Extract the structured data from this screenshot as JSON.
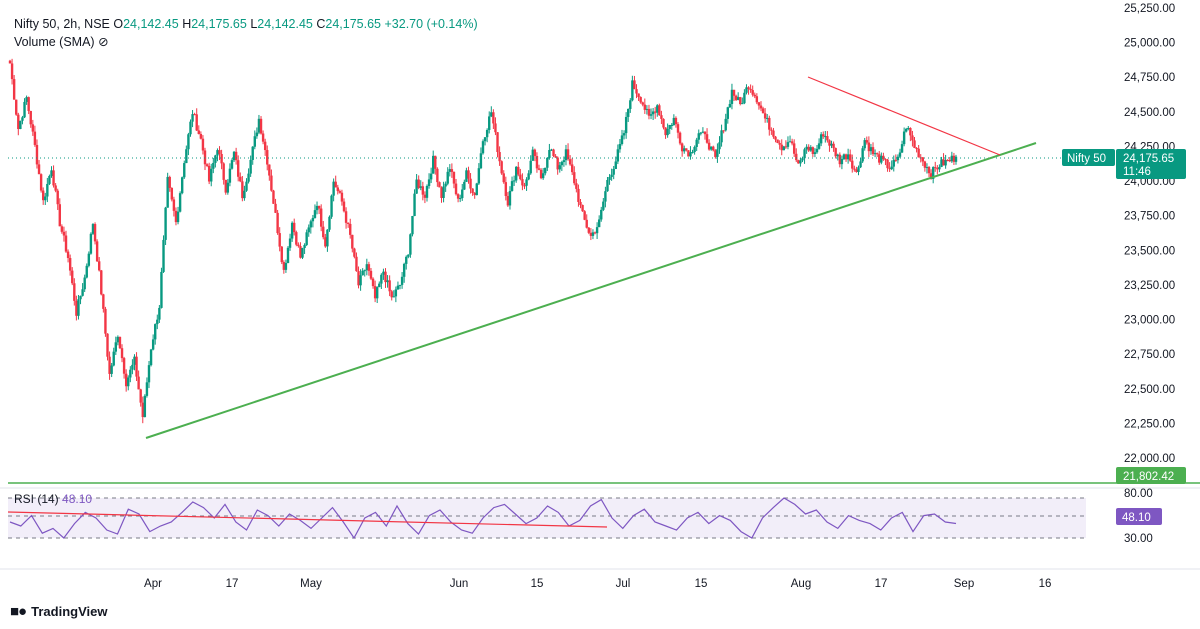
{
  "header": {
    "symbol": "Nifty 50, 2h, NSE",
    "o_label": "O",
    "o_value": "24,142.45",
    "h_label": "H",
    "h_value": "24,175.65",
    "l_label": "L",
    "l_value": "24,142.45",
    "c_label": "C",
    "c_value": "24,175.65",
    "change": "+32.70 (+0.14%)",
    "volume_label": "Volume (SMA)",
    "volume_icon": "eye-crossed-icon"
  },
  "price_axis": {
    "ticks": [
      "25,250.00",
      "25,000.00",
      "24,750.00",
      "24,500.00",
      "24,250.00",
      "24,000.00",
      "23,750.00",
      "23,500.00",
      "23,250.00",
      "23,000.00",
      "22,750.00",
      "22,500.00",
      "22,250.00",
      "22,000.00"
    ],
    "current_symbol_tag": "Nifty 50",
    "current_price": "24,175.65",
    "countdown": "11:46",
    "horizontal_line_label": "21,802.42"
  },
  "rsi": {
    "label": "RSI (14)",
    "value": "48.10",
    "upper": "80.00",
    "lower": "30.00"
  },
  "time_axis": [
    "Apr",
    "17",
    "May",
    "Jun",
    "15",
    "Jul",
    "15",
    "Aug",
    "17",
    "Sep",
    "16"
  ],
  "brand": "TradingView",
  "colors": {
    "up": "#089981",
    "down": "#f23645",
    "green_line": "#4caf50",
    "red_line": "#f23645",
    "rsi": "#7e57c2",
    "rsi_band": "#ede7f6",
    "price_tag": "#089981",
    "line_tag": "#4caf50"
  },
  "chart_data": {
    "type": "candlestick",
    "symbol": "Nifty 50",
    "interval": "2h",
    "ylim": [
      21800,
      25250
    ],
    "last_close": 24175.65,
    "horizontal_line": 21802.42,
    "close_path": [
      {
        "x": "Mar 19",
        "y": 24850
      },
      {
        "x": "Mar 20",
        "y": 24380
      },
      {
        "x": "Mar 21",
        "y": 24600
      },
      {
        "x": "Mar 22",
        "y": 24250
      },
      {
        "x": "Mar 25",
        "y": 23850
      },
      {
        "x": "Mar 26",
        "y": 24100
      },
      {
        "x": "Mar 27",
        "y": 23700
      },
      {
        "x": "Mar 28",
        "y": 23450
      },
      {
        "x": "Mar 29",
        "y": 23050
      },
      {
        "x": "Apr 1",
        "y": 23300
      },
      {
        "x": "Apr 2",
        "y": 23700
      },
      {
        "x": "Apr 3",
        "y": 23200
      },
      {
        "x": "Apr 4",
        "y": 22600
      },
      {
        "x": "Apr 7",
        "y": 22900
      },
      {
        "x": "Apr 8",
        "y": 22550
      },
      {
        "x": "Apr 9",
        "y": 22700
      },
      {
        "x": "Apr 10",
        "y": 22300
      },
      {
        "x": "Apr 11",
        "y": 22800
      },
      {
        "x": "Apr 14",
        "y": 23100
      },
      {
        "x": "Apr 15",
        "y": 24000
      },
      {
        "x": "Apr 16",
        "y": 23700
      },
      {
        "x": "Apr 17",
        "y": 24150
      },
      {
        "x": "Apr 21",
        "y": 24500
      },
      {
        "x": "Apr 22",
        "y": 24300
      },
      {
        "x": "Apr 23",
        "y": 24000
      },
      {
        "x": "Apr 24",
        "y": 24250
      },
      {
        "x": "Apr 25",
        "y": 23950
      },
      {
        "x": "Apr 28",
        "y": 24200
      },
      {
        "x": "Apr 29",
        "y": 23900
      },
      {
        "x": "Apr 30",
        "y": 24150
      },
      {
        "x": "May 2",
        "y": 24450
      },
      {
        "x": "May 5",
        "y": 24150
      },
      {
        "x": "May 6",
        "y": 23750
      },
      {
        "x": "May 7",
        "y": 23350
      },
      {
        "x": "May 8",
        "y": 23700
      },
      {
        "x": "May 9",
        "y": 23450
      },
      {
        "x": "May 12",
        "y": 23650
      },
      {
        "x": "May 13",
        "y": 23850
      },
      {
        "x": "May 14",
        "y": 23550
      },
      {
        "x": "May 15",
        "y": 24000
      },
      {
        "x": "May 16",
        "y": 23850
      },
      {
        "x": "May 19",
        "y": 23600
      },
      {
        "x": "May 20",
        "y": 23250
      },
      {
        "x": "May 21",
        "y": 23400
      },
      {
        "x": "May 22",
        "y": 23150
      },
      {
        "x": "May 23",
        "y": 23350
      },
      {
        "x": "May 26",
        "y": 23150
      },
      {
        "x": "May 27",
        "y": 23250
      },
      {
        "x": "May 28",
        "y": 23500
      },
      {
        "x": "May 29",
        "y": 24000
      },
      {
        "x": "May 30",
        "y": 23900
      },
      {
        "x": "Jun 2",
        "y": 24150
      },
      {
        "x": "Jun 3",
        "y": 23900
      },
      {
        "x": "Jun 4",
        "y": 24100
      },
      {
        "x": "Jun 5",
        "y": 23850
      },
      {
        "x": "Jun 6",
        "y": 24050
      },
      {
        "x": "Jun 9",
        "y": 23900
      },
      {
        "x": "Jun 10",
        "y": 24300
      },
      {
        "x": "Jun 11",
        "y": 24500
      },
      {
        "x": "Jun 12",
        "y": 24150
      },
      {
        "x": "Jun 13",
        "y": 23850
      },
      {
        "x": "Jun 16",
        "y": 24100
      },
      {
        "x": "Jun 17",
        "y": 23950
      },
      {
        "x": "Jun 18",
        "y": 24200
      },
      {
        "x": "Jun 19",
        "y": 24000
      },
      {
        "x": "Jun 20",
        "y": 24250
      },
      {
        "x": "Jun 23",
        "y": 24100
      },
      {
        "x": "Jun 24",
        "y": 24200
      },
      {
        "x": "Jun 25",
        "y": 24000
      },
      {
        "x": "Jun 26",
        "y": 23750
      },
      {
        "x": "Jun 27",
        "y": 23600
      },
      {
        "x": "Jun 30",
        "y": 23700
      },
      {
        "x": "Jul 1",
        "y": 24000
      },
      {
        "x": "Jul 2",
        "y": 24150
      },
      {
        "x": "Jul 3",
        "y": 24350
      },
      {
        "x": "Jul 4",
        "y": 24700
      },
      {
        "x": "Jul 7",
        "y": 24600
      },
      {
        "x": "Jul 8",
        "y": 24450
      },
      {
        "x": "Jul 9",
        "y": 24550
      },
      {
        "x": "Jul 10",
        "y": 24350
      },
      {
        "x": "Jul 11",
        "y": 24450
      },
      {
        "x": "Jul 14",
        "y": 24250
      },
      {
        "x": "Jul 15",
        "y": 24200
      },
      {
        "x": "Jul 16",
        "y": 24350
      },
      {
        "x": "Jul 17",
        "y": 24300
      },
      {
        "x": "Jul 18",
        "y": 24150
      },
      {
        "x": "Jul 21",
        "y": 24400
      },
      {
        "x": "Jul 22",
        "y": 24650
      },
      {
        "x": "Jul 23",
        "y": 24550
      },
      {
        "x": "Jul 24",
        "y": 24700
      },
      {
        "x": "Jul 25",
        "y": 24600
      },
      {
        "x": "Jul 28",
        "y": 24450
      },
      {
        "x": "Jul 29",
        "y": 24350
      },
      {
        "x": "Jul 30",
        "y": 24250
      },
      {
        "x": "Jul 31",
        "y": 24300
      },
      {
        "x": "Aug 1",
        "y": 24100
      },
      {
        "x": "Aug 4",
        "y": 24250
      },
      {
        "x": "Aug 5",
        "y": 24200
      },
      {
        "x": "Aug 6",
        "y": 24350
      },
      {
        "x": "Aug 7",
        "y": 24250
      },
      {
        "x": "Aug 8",
        "y": 24150
      },
      {
        "x": "Aug 11",
        "y": 24200
      },
      {
        "x": "Aug 12",
        "y": 24050
      },
      {
        "x": "Aug 13",
        "y": 24300
      },
      {
        "x": "Aug 14",
        "y": 24200
      },
      {
        "x": "Aug 18",
        "y": 24150
      },
      {
        "x": "Aug 19",
        "y": 24100
      },
      {
        "x": "Aug 20",
        "y": 24150
      },
      {
        "x": "Aug 21",
        "y": 24400
      },
      {
        "x": "Aug 22",
        "y": 24250
      },
      {
        "x": "Aug 25",
        "y": 24150
      },
      {
        "x": "Aug 26",
        "y": 24050
      },
      {
        "x": "Aug 28",
        "y": 24120
      },
      {
        "x": "Aug 29",
        "y": 24142.45
      },
      {
        "x": "Aug 30",
        "y": 24175.65
      }
    ],
    "drawings": [
      {
        "kind": "trendline",
        "color": "green",
        "from": {
          "x": "Mar 31",
          "y": 22150
        },
        "to": {
          "x": "Sep 14",
          "y": 24300
        }
      },
      {
        "kind": "trendline",
        "color": "red",
        "from": {
          "x": "Aug 1",
          "y": 24780
        },
        "to": {
          "x": "Sep 10",
          "y": 24180
        }
      },
      {
        "kind": "horizontal",
        "color": "green",
        "y": 21802.42
      }
    ],
    "rsi": {
      "period": 14,
      "last": 48.1,
      "bands": [
        80,
        30
      ],
      "values": [
        50,
        45,
        58,
        36,
        42,
        30,
        48,
        62,
        55,
        40,
        35,
        66,
        60,
        38,
        45,
        50,
        62,
        75,
        68,
        55,
        72,
        50,
        40,
        65,
        58,
        45,
        60,
        52,
        42,
        55,
        68,
        50,
        30,
        55,
        62,
        45,
        70,
        48,
        35,
        58,
        65,
        50,
        40,
        36,
        55,
        68,
        72,
        60,
        48,
        55,
        70,
        62,
        45,
        52,
        70,
        78,
        55,
        42,
        58,
        66,
        50,
        45,
        40,
        55,
        62,
        48,
        58,
        52,
        38,
        30,
        55,
        68,
        80,
        72,
        60,
        65,
        50,
        42,
        58,
        52,
        48,
        40,
        55,
        62,
        38,
        58,
        60,
        50,
        48.1
      ],
      "drawings": [
        {
          "kind": "trendline",
          "color": "red",
          "from": {
            "x": "Mar 19",
            "y": 68
          },
          "to": {
            "x": "Jun 30",
            "y": 42
          }
        }
      ]
    }
  }
}
